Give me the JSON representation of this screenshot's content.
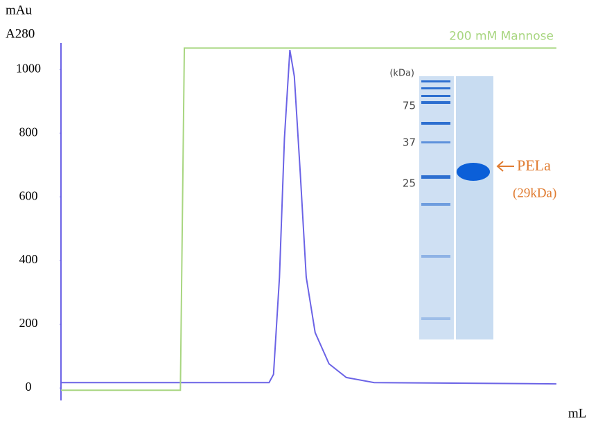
{
  "chart_data": {
    "type": "line",
    "ylabel": [
      "mAu",
      "A280"
    ],
    "xlabel": "mL",
    "xlim": [
      0,
      100
    ],
    "ylim": [
      -39,
      1083
    ],
    "yticks": [
      0,
      200,
      400,
      600,
      800,
      1000
    ],
    "series": [
      {
        "color": "#6b63e6",
        "x": [
          0,
          42.0,
          42.9,
          44.1,
          45.1,
          46.2,
          47.1,
          48.3,
          49.5,
          51.3,
          54.1,
          57.6,
          63.2,
          100
        ],
        "values": [
          17,
          17,
          43,
          348,
          783,
          1061,
          978,
          674,
          348,
          174,
          76,
          33,
          17,
          13
        ]
      },
      {
        "name": "200 mM Mannose",
        "color": "#a8d680",
        "x": [
          0,
          24.1,
          24.9,
          100
        ],
        "values": [
          -7,
          -7,
          1067,
          1067
        ]
      }
    ]
  },
  "gel": {
    "unit_label": "(kDa)",
    "markers": [
      "75",
      "37",
      "25"
    ],
    "band_label": "PELa",
    "band_size": "(29kDa)"
  }
}
